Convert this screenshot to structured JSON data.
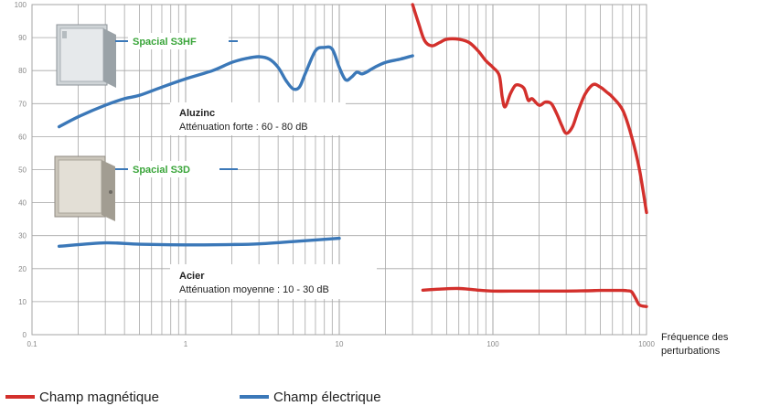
{
  "chart_data": {
    "type": "line",
    "x_scale": "log",
    "xlim": [
      0.1,
      1000
    ],
    "ylim": [
      0,
      100
    ],
    "grid": true,
    "x_ticks": [
      "0.1",
      "1",
      "10",
      "100",
      "1000"
    ],
    "y_ticks": [
      "0",
      "10",
      "20",
      "30",
      "40",
      "50",
      "60",
      "70",
      "80",
      "90",
      "100"
    ],
    "xlabel": "Fréquence des perturbations",
    "xlabel_lines": [
      "Fréquence des",
      "perturbations"
    ],
    "legend_position": "bottom-left",
    "series": [
      {
        "name": "Champ électrique",
        "color": "#3b78b8",
        "segments": [
          {
            "x": [
              0.15,
              0.2,
              0.3,
              0.4,
              0.5,
              0.7,
              1.0,
              1.5,
              2.0,
              2.5,
              3.0,
              3.5,
              4.0,
              4.5,
              5.0,
              5.5,
              6.0,
              7.0,
              8.0,
              9.0,
              10.0,
              11.0,
              12.0,
              13.0,
              14.0,
              15.0,
              17.0,
              20.0,
              25.0,
              30.0
            ],
            "y": [
              63,
              66,
              69.5,
              71.5,
              72.5,
              75,
              77.5,
              80,
              82.5,
              83.7,
              84.2,
              83.5,
              81,
              77,
              74.5,
              75,
              79,
              86,
              87,
              86.5,
              81,
              77.2,
              78,
              79.5,
              79,
              79.5,
              81,
              82.5,
              83.5,
              84.5
            ]
          },
          {
            "x": [
              0.15,
              0.3,
              0.5,
              1.0,
              2.0,
              3.0,
              5.0,
              7.0,
              10.0
            ],
            "y": [
              26.8,
              27.8,
              27.4,
              27.2,
              27.3,
              27.5,
              28.2,
              28.7,
              29.2
            ]
          }
        ]
      },
      {
        "name": "Champ magnétique",
        "color": "#d3302c",
        "segments": [
          {
            "x": [
              30,
              33,
              36,
              40,
              45,
              50,
              60,
              70,
              80,
              90,
              100,
              110,
              115,
              120,
              130,
              140,
              150,
              160,
              170,
              180,
              200,
              220,
              240,
              260,
              280,
              300,
              330,
              360,
              400,
              450,
              500,
              550,
              600,
              700,
              800,
              900,
              1000
            ],
            "y": [
              100,
              94,
              89,
              87.5,
              88.5,
              89.5,
              89.5,
              88.5,
              86,
              83,
              81,
              78.5,
              72,
              69,
              73,
              75.5,
              75.5,
              74.5,
              71,
              71.5,
              69.5,
              70.5,
              70,
              67,
              63.5,
              61,
              63,
              68,
              73,
              75.8,
              75,
              73.5,
              72,
              68,
              60,
              50,
              37
            ]
          },
          {
            "x": [
              35,
              45,
              60,
              80,
              100,
              150,
              200,
              300,
              400,
              500,
              600,
              700,
              750,
              800,
              850,
              900,
              1000
            ],
            "y": [
              13.5,
              13.8,
              14.0,
              13.5,
              13.2,
              13.2,
              13.2,
              13.2,
              13.3,
              13.4,
              13.4,
              13.4,
              13.3,
              13.0,
              11.0,
              9.0,
              8.5
            ]
          }
        ]
      }
    ],
    "annotations": [
      {
        "title": "Aluzinc",
        "text": "Atténuation forte : 60 - 80 dB"
      },
      {
        "title": "Acier",
        "text": "Atténuation moyenne : 10 - 30 dB"
      }
    ],
    "products": [
      {
        "label": "Spacial S3HF"
      },
      {
        "label": "Spacial S3D"
      }
    ]
  },
  "legend": {
    "items": [
      {
        "label": "Champ magnétique",
        "color": "#d3302c"
      },
      {
        "label": "Champ électrique",
        "color": "#3b78b8"
      }
    ]
  },
  "colors": {
    "grid": "#a6a6a6",
    "plot_background": "#ffffff",
    "product_label": "#3aa53a"
  }
}
